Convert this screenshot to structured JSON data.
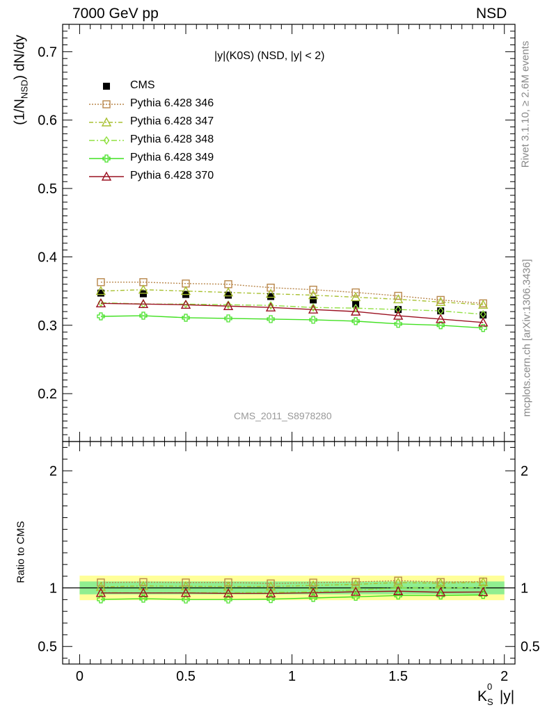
{
  "header": {
    "left": "7000 GeV pp",
    "right": "NSD"
  },
  "side_text": {
    "rivet": "Rivet 3.1.10, ≥ 2.6M events",
    "mcplots": "mcplots.cern.ch [arXiv:1306.3436]"
  },
  "colors": {
    "cms": "#000000",
    "p346": "#b8864a",
    "p347": "#a8c030",
    "p348": "#90e040",
    "p349": "#40e020",
    "p370": "#9a1020",
    "band_inner": "#90ee90",
    "band_outer": "#ffff99"
  },
  "chart_data": [
    {
      "type": "line",
      "panel": "main",
      "title": "|y|(K0S) (NSD, |y| < 2)",
      "ylabel": "(1/N_NSD) dN/dy",
      "ylim": [
        0.13,
        0.74
      ],
      "xlim": [
        -0.08,
        2.05
      ],
      "yticks": [
        0.2,
        0.3,
        0.4,
        0.5,
        0.6,
        0.7
      ],
      "watermark": "CMS_2011_S8978280",
      "x": [
        0.1,
        0.3,
        0.5,
        0.7,
        0.9,
        1.1,
        1.3,
        1.5,
        1.7,
        1.9
      ],
      "series": [
        {
          "name": "CMS",
          "marker": "square-filled",
          "values": [
            0.347,
            0.346,
            0.345,
            0.344,
            0.342,
            0.337,
            0.331,
            0.323,
            0.321,
            0.315
          ]
        },
        {
          "name": "Pythia 6.428 346",
          "marker": "square-open",
          "values": [
            0.363,
            0.363,
            0.361,
            0.36,
            0.355,
            0.352,
            0.348,
            0.343,
            0.337,
            0.332
          ]
        },
        {
          "name": "Pythia 6.428 347",
          "marker": "triangle-open",
          "values": [
            0.35,
            0.352,
            0.35,
            0.348,
            0.346,
            0.344,
            0.341,
            0.338,
            0.334,
            0.33
          ]
        },
        {
          "name": "Pythia 6.428 348",
          "marker": "diamond-open",
          "values": [
            0.333,
            0.331,
            0.331,
            0.33,
            0.329,
            0.326,
            0.325,
            0.323,
            0.321,
            0.316
          ]
        },
        {
          "name": "Pythia 6.428 349",
          "marker": "cross-open",
          "values": [
            0.313,
            0.314,
            0.311,
            0.31,
            0.309,
            0.308,
            0.306,
            0.302,
            0.3,
            0.296
          ]
        },
        {
          "name": "Pythia 6.428 370",
          "marker": "triangle-open",
          "values": [
            0.332,
            0.331,
            0.33,
            0.328,
            0.326,
            0.323,
            0.32,
            0.314,
            0.309,
            0.304
          ]
        }
      ]
    },
    {
      "type": "line",
      "panel": "ratio",
      "ylabel": "Ratio to CMS",
      "xlabel": "K_S^0 |y|",
      "ylim": [
        0.35,
        2.25
      ],
      "xlim": [
        -0.08,
        2.05
      ],
      "yticks": [
        0.5,
        1,
        2
      ],
      "xticks": [
        0,
        0.5,
        1,
        1.5,
        2
      ],
      "x": [
        0.1,
        0.3,
        0.5,
        0.7,
        0.9,
        1.1,
        1.3,
        1.5,
        1.7,
        1.9
      ],
      "band_inner": [
        0.945,
        1.055
      ],
      "band_outer": [
        0.895,
        1.105
      ],
      "series": [
        {
          "name": "Pythia 6.428 346",
          "values": [
            1.046,
            1.049,
            1.046,
            1.047,
            1.038,
            1.045,
            1.051,
            1.062,
            1.05,
            1.054
          ]
        },
        {
          "name": "Pythia 6.428 347",
          "values": [
            1.009,
            1.017,
            1.014,
            1.012,
            1.012,
            1.021,
            1.03,
            1.046,
            1.04,
            1.048
          ]
        },
        {
          "name": "Pythia 6.428 348",
          "values": [
            0.96,
            0.957,
            0.959,
            0.959,
            0.962,
            0.967,
            0.982,
            1.0,
            1.0,
            1.003
          ]
        },
        {
          "name": "Pythia 6.428 349",
          "values": [
            0.902,
            0.908,
            0.901,
            0.901,
            0.904,
            0.914,
            0.924,
            0.935,
            0.935,
            0.94
          ]
        },
        {
          "name": "Pythia 6.428 370",
          "values": [
            0.957,
            0.957,
            0.957,
            0.953,
            0.953,
            0.958,
            0.967,
            0.972,
            0.963,
            0.965
          ]
        }
      ]
    }
  ]
}
